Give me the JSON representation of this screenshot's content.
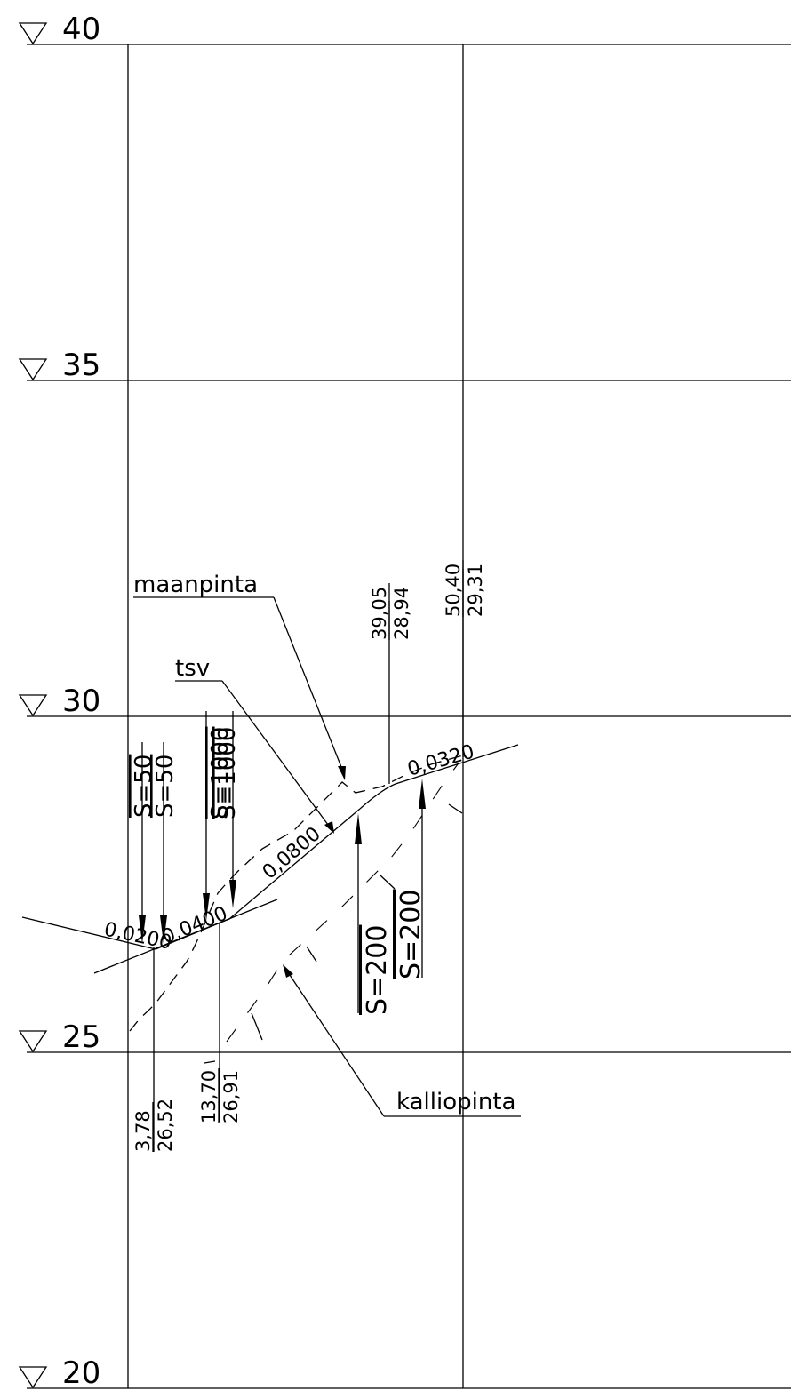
{
  "elevation_levels": [
    {
      "label": "40",
      "value": 40
    },
    {
      "label": "35",
      "value": 35
    },
    {
      "label": "30",
      "value": 30
    },
    {
      "label": "25",
      "value": 25
    },
    {
      "label": "20",
      "value": 20
    }
  ],
  "labels": {
    "ground": "maanpinta",
    "grade_line": "tsv",
    "bedrock": "kalliopinta"
  },
  "slopes": {
    "left": "0,0200",
    "left2": "0,0400",
    "middle": "0,0800",
    "right": "0,0320"
  },
  "vertical_curves": {
    "s1": "S=50",
    "s2": "S=50",
    "s3": "S=1000",
    "s4": "S=1000",
    "s5": "S=200",
    "s6": "S=200"
  },
  "stations": [
    {
      "distance": "3,78",
      "elevation": "26,52"
    },
    {
      "distance": "13,70",
      "elevation": "26,91"
    },
    {
      "distance": "39,05",
      "elevation": "28,94"
    },
    {
      "distance": "50,40",
      "elevation": "29,31"
    }
  ]
}
